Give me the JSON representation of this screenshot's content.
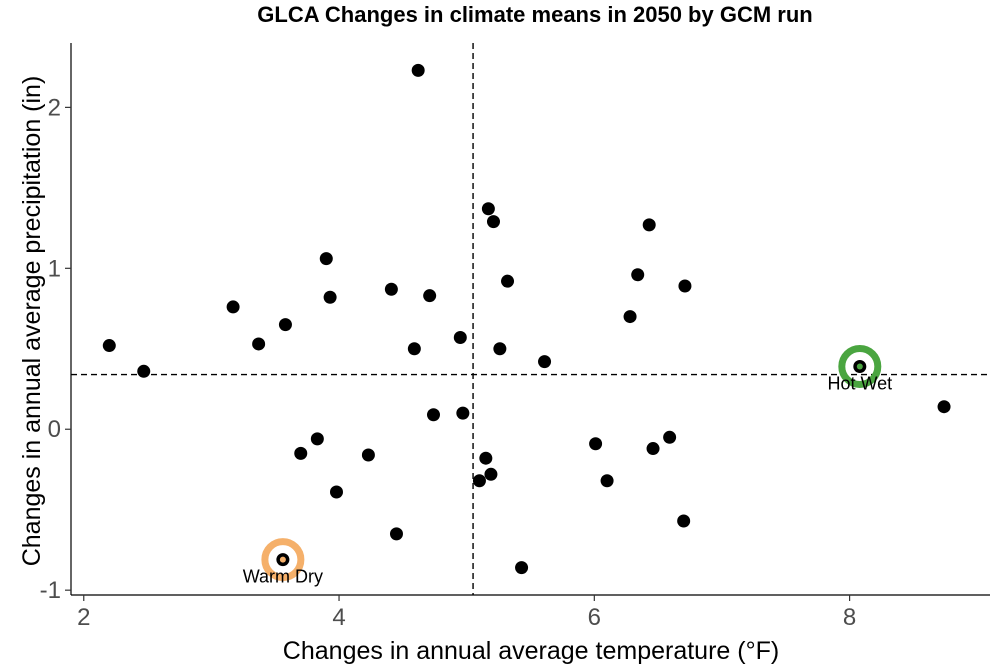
{
  "chart_data": {
    "type": "scatter",
    "title": "GLCA Changes in climate means in 2050 by GCM run",
    "xlabel": "Changes in annual average temperature (°F)",
    "ylabel": "Changes in annual average precipitation (in)",
    "xlim": [
      1.9,
      9.1
    ],
    "ylim": [
      -1.03,
      2.4
    ],
    "xticks": [
      2,
      4,
      6,
      8
    ],
    "yticks": [
      -1,
      0,
      1,
      2
    ],
    "grid": false,
    "reference_lines": {
      "x": 5.05,
      "y": 0.34
    },
    "point_color": "#000000",
    "points": [
      {
        "x": 2.2,
        "y": 0.52
      },
      {
        "x": 2.47,
        "y": 0.36
      },
      {
        "x": 3.17,
        "y": 0.76
      },
      {
        "x": 3.37,
        "y": 0.53
      },
      {
        "x": 3.58,
        "y": 0.65
      },
      {
        "x": 3.9,
        "y": 1.06
      },
      {
        "x": 3.93,
        "y": 0.82
      },
      {
        "x": 4.41,
        "y": 0.87
      },
      {
        "x": 4.71,
        "y": 0.83
      },
      {
        "x": 4.62,
        "y": 2.23
      },
      {
        "x": 4.59,
        "y": 0.5
      },
      {
        "x": 4.95,
        "y": 0.57
      },
      {
        "x": 5.17,
        "y": 1.37
      },
      {
        "x": 5.21,
        "y": 1.29
      },
      {
        "x": 5.32,
        "y": 0.92
      },
      {
        "x": 5.26,
        "y": 0.5
      },
      {
        "x": 5.61,
        "y": 0.42
      },
      {
        "x": 6.43,
        "y": 1.27
      },
      {
        "x": 6.34,
        "y": 0.96
      },
      {
        "x": 6.71,
        "y": 0.89
      },
      {
        "x": 6.28,
        "y": 0.7
      },
      {
        "x": 4.74,
        "y": 0.09
      },
      {
        "x": 4.97,
        "y": 0.1
      },
      {
        "x": 3.83,
        "y": -0.06
      },
      {
        "x": 3.7,
        "y": -0.15
      },
      {
        "x": 4.23,
        "y": -0.16
      },
      {
        "x": 3.98,
        "y": -0.39
      },
      {
        "x": 4.45,
        "y": -0.65
      },
      {
        "x": 5.15,
        "y": -0.18
      },
      {
        "x": 5.19,
        "y": -0.28
      },
      {
        "x": 5.1,
        "y": -0.32
      },
      {
        "x": 5.43,
        "y": -0.86
      },
      {
        "x": 6.01,
        "y": -0.09
      },
      {
        "x": 6.59,
        "y": -0.05
      },
      {
        "x": 6.46,
        "y": -0.12
      },
      {
        "x": 6.1,
        "y": -0.32
      },
      {
        "x": 6.7,
        "y": -0.57
      },
      {
        "x": 8.74,
        "y": 0.14
      }
    ],
    "highlights": [
      {
        "label": "Hot Wet",
        "x": 8.08,
        "y": 0.39,
        "ring_color": "#4aa540"
      },
      {
        "label": "Warm Dry",
        "x": 3.56,
        "y": -0.81,
        "ring_color": "#f5b06a"
      }
    ]
  }
}
